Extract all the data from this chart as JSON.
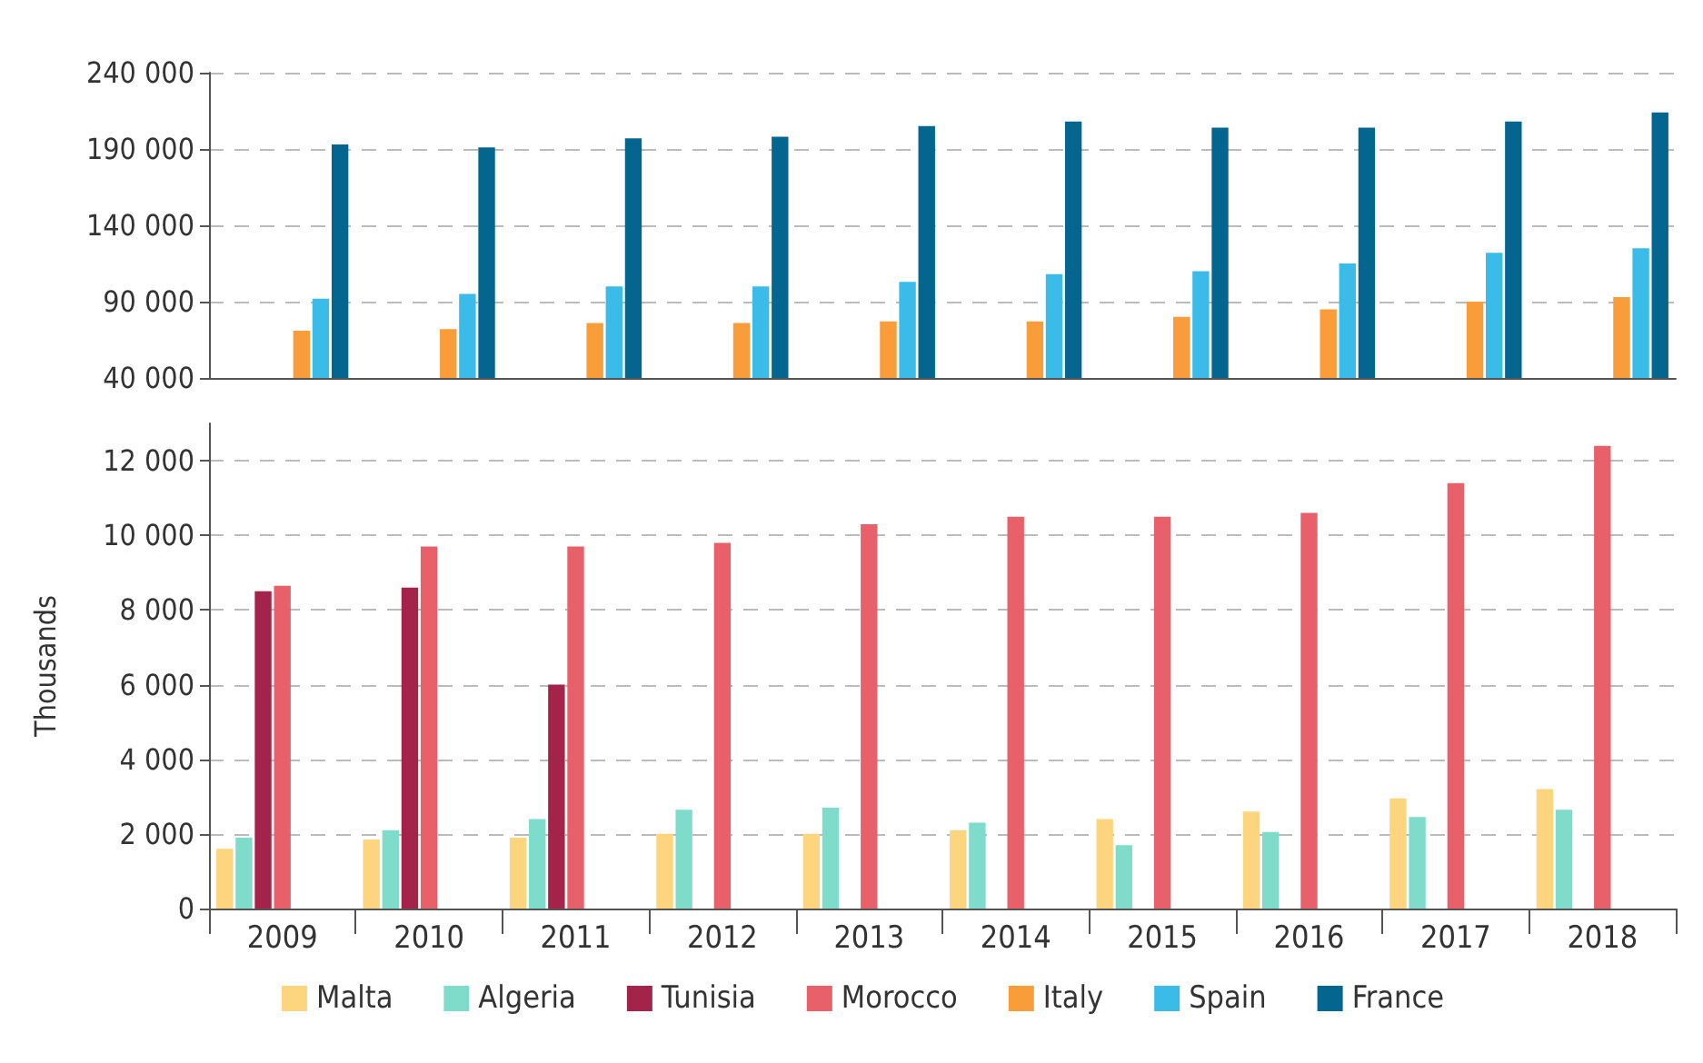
{
  "chart_data": [
    {
      "type": "bar",
      "categories": [
        "2009",
        "2010",
        "2011",
        "2012",
        "2013",
        "2014",
        "2015",
        "2016",
        "2017",
        "2018"
      ],
      "ylim": [
        40000,
        240000
      ],
      "yticks": [
        {
          "value": 40000,
          "label": "40 000"
        },
        {
          "value": 90000,
          "label": "90 000"
        },
        {
          "value": 140000,
          "label": "140 000"
        },
        {
          "value": 190000,
          "label": "190 000"
        },
        {
          "value": 240000,
          "label": "240 000"
        }
      ],
      "grid": "y",
      "legend": false,
      "tick_labels": "y",
      "series": [
        {
          "color": "#fdd57e",
          "values": [
            null,
            null,
            null,
            null,
            null,
            null,
            null,
            null,
            null,
            null
          ]
        },
        {
          "color": "#7fdccb",
          "values": [
            null,
            null,
            null,
            null,
            null,
            null,
            null,
            null,
            null,
            null
          ]
        },
        {
          "color": "#a3234a",
          "values": [
            null,
            null,
            null,
            null,
            null,
            null,
            null,
            null,
            null,
            null
          ]
        },
        {
          "color": "#e8606a",
          "values": [
            null,
            null,
            null,
            null,
            null,
            null,
            null,
            null,
            null,
            null
          ]
        },
        {
          "color": "#f99d3a",
          "values": [
            71000,
            72000,
            76000,
            76000,
            77000,
            77000,
            80000,
            85000,
            90000,
            93000
          ]
        },
        {
          "color": "#3bbce8",
          "values": [
            92000,
            95000,
            100000,
            100000,
            103000,
            108000,
            110000,
            115000,
            122000,
            125000
          ]
        },
        {
          "color": "#04668f",
          "values": [
            193000,
            191000,
            197000,
            198000,
            205000,
            208000,
            204000,
            204000,
            208000,
            214000
          ]
        }
      ]
    },
    {
      "type": "bar",
      "categories": [
        "2009",
        "2010",
        "2011",
        "2012",
        "2013",
        "2014",
        "2015",
        "2016",
        "2017",
        "2018"
      ],
      "ylabel": "Thousands",
      "ylim": [
        0,
        13000
      ],
      "yticks": [
        {
          "value": 0,
          "label": "0"
        },
        {
          "value": 2000,
          "label": "2 000"
        },
        {
          "value": 4000,
          "label": "4 000"
        },
        {
          "value": 6000,
          "label": "6 000"
        },
        {
          "value": 8000,
          "label": "8 000"
        },
        {
          "value": 10000,
          "label": "10 000"
        },
        {
          "value": 12000,
          "label": "12 000"
        }
      ],
      "grid": "y",
      "legend": "bottom",
      "series": [
        {
          "name": "Malta",
          "color": "#fdd57e",
          "values": [
            1600,
            1850,
            1900,
            2000,
            2000,
            2100,
            2400,
            2600,
            2950,
            3200
          ]
        },
        {
          "name": "Algeria",
          "color": "#7fdccb",
          "values": [
            1900,
            2100,
            2400,
            2650,
            2700,
            2300,
            1700,
            2050,
            2450,
            2650
          ]
        },
        {
          "name": "Tunisia",
          "color": "#a3234a",
          "values": [
            8500,
            8600,
            6000,
            null,
            null,
            null,
            null,
            null,
            null,
            null
          ]
        },
        {
          "name": "Morocco",
          "color": "#e8606a",
          "values": [
            8650,
            9700,
            9700,
            9800,
            10300,
            10500,
            10500,
            10600,
            11400,
            12400
          ]
        },
        {
          "name": "Italy",
          "color": "#f99d3a",
          "values": [
            null,
            null,
            null,
            null,
            null,
            null,
            null,
            null,
            null,
            null
          ]
        },
        {
          "name": "Spain",
          "color": "#3bbce8",
          "values": [
            null,
            null,
            null,
            null,
            null,
            null,
            null,
            null,
            null,
            null
          ]
        },
        {
          "name": "France",
          "color": "#04668f",
          "values": [
            null,
            null,
            null,
            null,
            null,
            null,
            null,
            null,
            null,
            null
          ]
        }
      ]
    }
  ]
}
